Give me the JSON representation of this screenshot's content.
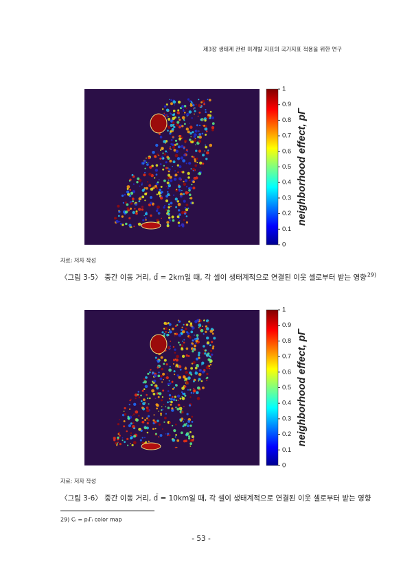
{
  "header": "제3장 생태계 관련 미개발 지표의 국가지표 적용을 위한 연구",
  "figures": [
    {
      "colorbar_label": "neighborhood effect, pΓ",
      "colorbar_ticks": [
        0,
        0.1,
        0.2,
        0.3,
        0.4,
        0.5,
        0.6,
        0.7,
        0.8,
        0.9,
        1
      ],
      "source": "자료: 저자 작성",
      "caption": "〈그림 3-5〉 중간 이동 거리, d̄ = 2km일 때, 각 셀이 생태계적으로 연결된 이웃 셀로부터 받는 영향",
      "footnote_ref": "29)"
    },
    {
      "colorbar_label": "neighborhood effect, pΓ",
      "colorbar_ticks": [
        0,
        0.1,
        0.2,
        0.3,
        0.4,
        0.5,
        0.6,
        0.7,
        0.8,
        0.9,
        1
      ],
      "source": "자료: 저자 작성",
      "caption": "〈그림 3-6〉 중간 이동 거리, d̄ = 10km일 때, 각 셀이 생태계적으로 연결된 이웃 셀로부터 받는 영향"
    }
  ],
  "footnote": "29) Cᵢ = pᵢΓᵢ color map",
  "page_number": "- 53 -"
}
